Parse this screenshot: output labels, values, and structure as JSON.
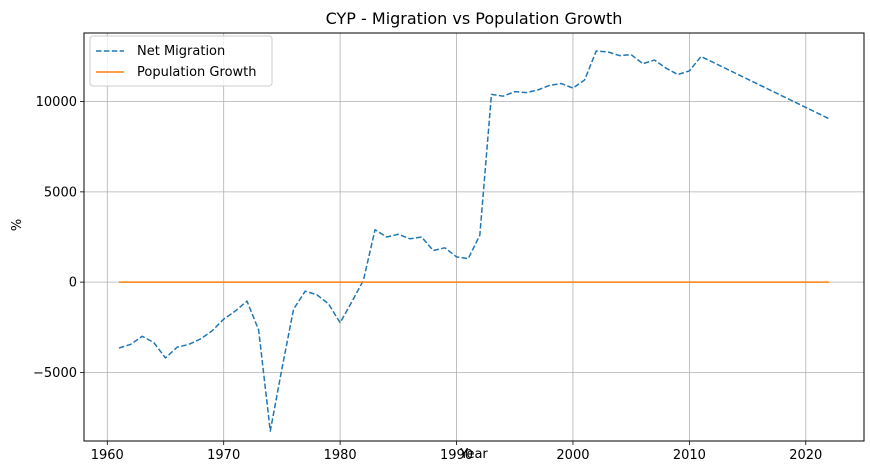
{
  "chart_data": {
    "type": "line",
    "title": "CYP - Migration vs Population Growth",
    "xlabel": "Year",
    "ylabel": "%",
    "xlim": [
      1958.0,
      2025.0
    ],
    "ylim": [
      -8800,
      13800
    ],
    "xticks": [
      1960,
      1970,
      1980,
      1990,
      2000,
      2010,
      2020
    ],
    "yticks": [
      -5000,
      0,
      5000,
      10000
    ],
    "ytick_labels": [
      "−5000",
      "0",
      "5000",
      "10000"
    ],
    "grid": true,
    "legend_position": "top-left",
    "series": [
      {
        "name": "Net Migration",
        "color": "#1f77b4",
        "style": "dashed",
        "x": [
          1961,
          1962,
          1963,
          1964,
          1965,
          1966,
          1967,
          1968,
          1969,
          1970,
          1971,
          1972,
          1973,
          1974,
          1975,
          1976,
          1977,
          1978,
          1979,
          1980,
          1981,
          1982,
          1983,
          1984,
          1985,
          1986,
          1987,
          1988,
          1989,
          1990,
          1991,
          1992,
          1993,
          1994,
          1995,
          1996,
          1997,
          1998,
          1999,
          2000,
          2001,
          2002,
          2003,
          2004,
          2005,
          2006,
          2007,
          2008,
          2009,
          2010,
          2011,
          2022
        ],
        "values": [
          -3650,
          -3450,
          -3000,
          -3350,
          -4200,
          -3600,
          -3450,
          -3150,
          -2700,
          -2050,
          -1600,
          -1050,
          -2650,
          -8250,
          -4800,
          -1500,
          -500,
          -700,
          -1200,
          -2250,
          -1100,
          100,
          2900,
          2500,
          2650,
          2400,
          2500,
          1750,
          1900,
          1400,
          1300,
          2600,
          10400,
          10300,
          10550,
          10500,
          10650,
          10900,
          11000,
          10750,
          11200,
          12800,
          12750,
          12550,
          12600,
          12100,
          12300,
          11850,
          11500,
          11700,
          12500,
          9050
        ]
      },
      {
        "name": "Population Growth",
        "color": "#ff7f0e",
        "style": "solid",
        "x": [
          1961,
          2022
        ],
        "values": [
          0,
          0
        ]
      }
    ]
  }
}
